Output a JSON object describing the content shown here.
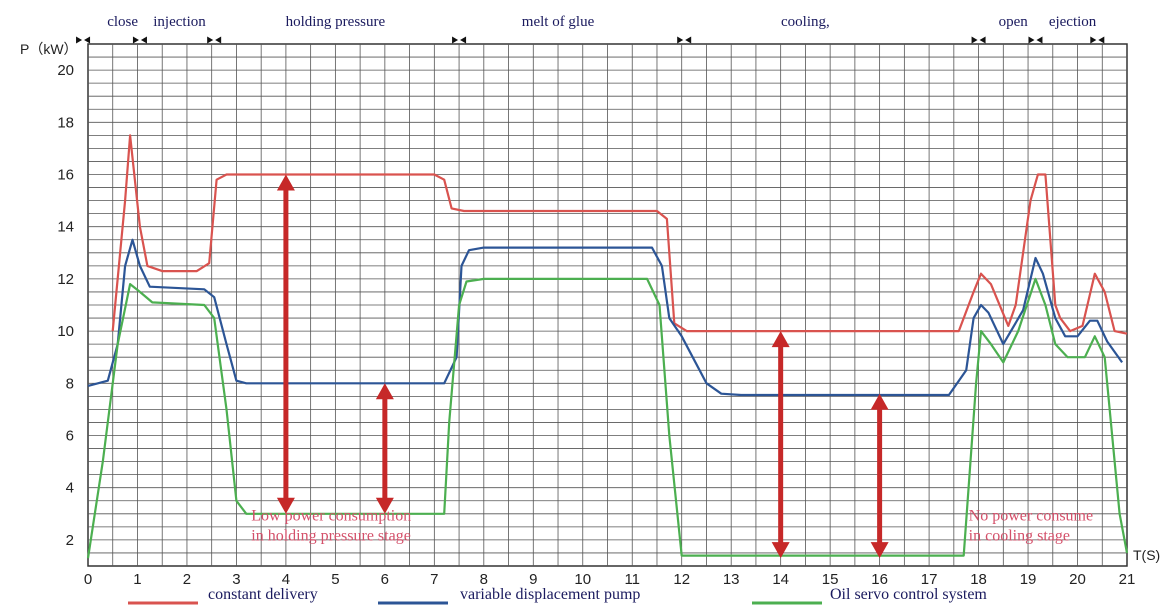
{
  "chart_data": {
    "type": "line",
    "ylabel": "P（kW）",
    "xlabel": "T(S)",
    "xlim": [
      0,
      21
    ],
    "ylim": [
      1,
      21
    ],
    "x_ticks": [
      0,
      1,
      2,
      3,
      4,
      5,
      6,
      7,
      8,
      9,
      10,
      11,
      12,
      13,
      14,
      15,
      16,
      17,
      18,
      19,
      20,
      21
    ],
    "y_ticks": [
      2,
      4,
      6,
      8,
      10,
      12,
      14,
      16,
      18,
      20
    ],
    "grid": true,
    "phases": [
      {
        "label": "close",
        "x": 0.7
      },
      {
        "label": "injection",
        "x": 1.85
      },
      {
        "label": "holding pressure",
        "x": 5.0
      },
      {
        "label": "melt of glue",
        "x": 9.5
      },
      {
        "label": "cooling,",
        "x": 14.5
      },
      {
        "label": "open",
        "x": 18.7
      },
      {
        "label": "ejection",
        "x": 19.9
      }
    ],
    "phase_markers": [
      -0.1,
      1.05,
      2.55,
      7.5,
      12.05,
      18.0,
      19.15,
      20.4
    ],
    "series": [
      {
        "name": "constant delivery",
        "color": "#d9534f",
        "points": [
          [
            0.5,
            10
          ],
          [
            0.75,
            15
          ],
          [
            0.85,
            17.5
          ],
          [
            1.05,
            14
          ],
          [
            1.2,
            12.5
          ],
          [
            1.5,
            12.3
          ],
          [
            2.2,
            12.3
          ],
          [
            2.45,
            12.6
          ],
          [
            2.6,
            15.8
          ],
          [
            2.8,
            16
          ],
          [
            7.0,
            16
          ],
          [
            7.2,
            15.8
          ],
          [
            7.35,
            14.7
          ],
          [
            7.6,
            14.6
          ],
          [
            11.5,
            14.6
          ],
          [
            11.7,
            14.3
          ],
          [
            11.85,
            10.3
          ],
          [
            12.1,
            10
          ],
          [
            17.6,
            10
          ],
          [
            17.9,
            11.5
          ],
          [
            18.05,
            12.2
          ],
          [
            18.25,
            11.8
          ],
          [
            18.6,
            10.2
          ],
          [
            18.75,
            11
          ],
          [
            19.05,
            15
          ],
          [
            19.2,
            16
          ],
          [
            19.35,
            16
          ],
          [
            19.55,
            11
          ],
          [
            19.65,
            10.5
          ],
          [
            19.85,
            10
          ],
          [
            20.1,
            10.2
          ],
          [
            20.35,
            12.2
          ],
          [
            20.55,
            11.5
          ],
          [
            20.75,
            10
          ],
          [
            21,
            9.9
          ]
        ]
      },
      {
        "name": "variable displacement pump",
        "color": "#2c5596",
        "points": [
          [
            0,
            7.9
          ],
          [
            0.4,
            8.1
          ],
          [
            0.6,
            9.5
          ],
          [
            0.75,
            12.5
          ],
          [
            0.9,
            13.5
          ],
          [
            1.05,
            12.5
          ],
          [
            1.25,
            11.7
          ],
          [
            2.35,
            11.6
          ],
          [
            2.55,
            11.3
          ],
          [
            2.8,
            9.5
          ],
          [
            3.0,
            8.1
          ],
          [
            3.2,
            8
          ],
          [
            7.2,
            8
          ],
          [
            7.45,
            9
          ],
          [
            7.55,
            12.5
          ],
          [
            7.7,
            13.1
          ],
          [
            8.0,
            13.2
          ],
          [
            11.4,
            13.2
          ],
          [
            11.6,
            12.5
          ],
          [
            11.75,
            10.5
          ],
          [
            12.0,
            9.8
          ],
          [
            12.5,
            8
          ],
          [
            12.8,
            7.6
          ],
          [
            13.2,
            7.55
          ],
          [
            17.4,
            7.55
          ],
          [
            17.75,
            8.5
          ],
          [
            17.9,
            10.5
          ],
          [
            18.05,
            11
          ],
          [
            18.2,
            10.7
          ],
          [
            18.5,
            9.5
          ],
          [
            18.9,
            10.8
          ],
          [
            19.15,
            12.8
          ],
          [
            19.3,
            12.2
          ],
          [
            19.55,
            10.5
          ],
          [
            19.75,
            9.8
          ],
          [
            20.0,
            9.8
          ],
          [
            20.25,
            10.4
          ],
          [
            20.4,
            10.4
          ],
          [
            20.6,
            9.6
          ],
          [
            20.9,
            8.8
          ]
        ]
      },
      {
        "name": "Oil servo control system",
        "color": "#4caf50",
        "points": [
          [
            0,
            1.3
          ],
          [
            0.3,
            5
          ],
          [
            0.6,
            9.5
          ],
          [
            0.85,
            11.8
          ],
          [
            1.05,
            11.5
          ],
          [
            1.3,
            11.1
          ],
          [
            2.35,
            11
          ],
          [
            2.55,
            10.5
          ],
          [
            2.8,
            7
          ],
          [
            3.0,
            3.5
          ],
          [
            3.2,
            3
          ],
          [
            7.2,
            3
          ],
          [
            7.3,
            6.5
          ],
          [
            7.5,
            11
          ],
          [
            7.65,
            11.9
          ],
          [
            8.0,
            12
          ],
          [
            11.3,
            12
          ],
          [
            11.55,
            11
          ],
          [
            11.75,
            6
          ],
          [
            12.0,
            1.4
          ],
          [
            17.7,
            1.4
          ],
          [
            17.95,
            8
          ],
          [
            18.05,
            10
          ],
          [
            18.25,
            9.5
          ],
          [
            18.5,
            8.8
          ],
          [
            18.8,
            10
          ],
          [
            19.15,
            12
          ],
          [
            19.35,
            11
          ],
          [
            19.55,
            9.5
          ],
          [
            19.8,
            9
          ],
          [
            20.15,
            9
          ],
          [
            20.35,
            9.8
          ],
          [
            20.55,
            9
          ],
          [
            20.85,
            3
          ],
          [
            21,
            1.5
          ]
        ]
      }
    ],
    "arrows": [
      {
        "x": 4.0,
        "y_from": 3.0,
        "y_to": 16.0,
        "color": "#c62828"
      },
      {
        "x": 6.0,
        "y_from": 3.0,
        "y_to": 8.0,
        "color": "#c62828"
      },
      {
        "x": 14.0,
        "y_from": 1.3,
        "y_to": 10.0,
        "color": "#c62828"
      },
      {
        "x": 16.0,
        "y_from": 1.3,
        "y_to": 7.6,
        "color": "#c62828"
      }
    ],
    "annotations": [
      {
        "lines": [
          "Low power consumption",
          "in holding pressure stage"
        ],
        "x": 3.3,
        "y": 2.75
      },
      {
        "lines": [
          "No power consume",
          "in cooling stage"
        ],
        "x": 17.8,
        "y": 2.75
      }
    ]
  }
}
